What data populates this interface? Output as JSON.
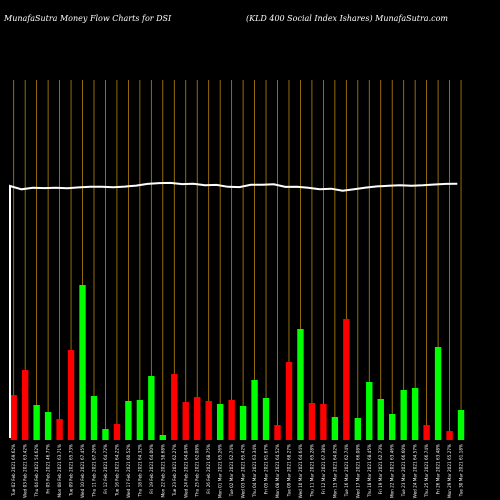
{
  "chart_data": {
    "type": "bar",
    "title_left": "MunafaSutra  Money Flow  Charts for DSI",
    "title_right": "(KLD 400   Social Index Ishares) MunafaSutra.com",
    "colors": {
      "background": "#000000",
      "gridline": "#b8860b",
      "up": "#00ff00",
      "down": "#ff0000",
      "line": "#ffffff"
    },
    "bars": {
      "values": [
        45,
        70,
        35,
        28,
        21,
        90,
        155,
        44,
        11,
        16,
        39,
        40,
        64,
        5,
        66,
        38,
        43,
        39,
        36,
        40,
        34,
        60,
        42,
        15,
        78,
        111,
        37,
        36,
        23,
        121,
        22,
        58,
        41,
        26,
        50,
        52,
        15,
        93,
        9,
        30
      ],
      "directions": [
        "down",
        "down",
        "up",
        "up",
        "down",
        "down",
        "up",
        "up",
        "up",
        "down",
        "up",
        "up",
        "up",
        "up",
        "down",
        "down",
        "down",
        "down",
        "up",
        "down",
        "up",
        "up",
        "up",
        "down",
        "down",
        "up",
        "down",
        "down",
        "up",
        "down",
        "up",
        "up",
        "up",
        "up",
        "up",
        "up",
        "down",
        "up",
        "down",
        "up"
      ]
    },
    "line": {
      "values": [
        100,
        93.5,
        96.5,
        95.9,
        96.7,
        95.5,
        97.1,
        98.7,
        98.5,
        97.6,
        98.8,
        100.8,
        104.2,
        105.9,
        106.1,
        103.8,
        104.3,
        101.4,
        102.1,
        98.3,
        97.9,
        102.4,
        102.6,
        103.5,
        98.1,
        98.7,
        96.4,
        93.6,
        94.7,
        90.7,
        93.6,
        96.9,
        99.2,
        100.5,
        101.3,
        100.6,
        101.4,
        103,
        104.2,
        104.4
      ],
      "start_value": 0
    },
    "x_ticks": [
      "Tue 02 Feb 2021 69.62%",
      "Wed 03 Feb 2021 63.42%",
      "Thu 04 Feb 2021 54.62%",
      "Fri 05 Feb 2021 46.77%",
      "Mon 08 Feb 2021 63.71%",
      "Tue 09 Feb 2021 65.73%",
      "Wed 10 Feb 2021 67.45%",
      "Thu 11 Feb 2021 67.26%",
      "Fri 12 Feb 2021 64.72%",
      "Tue 16 Feb 2021 64.22%",
      "Wed 17 Feb 2021 60.52%",
      "Thu 18 Feb 2021 64.32%",
      "Fri 19 Feb 2021 64.00%",
      "Mon 22 Feb 2021 58.68%",
      "Tue 23 Feb 2021 62.27%",
      "Wed 24 Feb 2021 64.04%",
      "Thu 25 Feb 2021 62.08%",
      "Fri 26 Feb 2021 68.75%",
      "Mon 01 Mar 2021 65.26%",
      "Tue 02 Mar 2021 62.74%",
      "Wed 03 Mar 2021 65.42%",
      "Thu 04 Mar 2021 63.34%",
      "Fri 05 Mar 2021 61.67%",
      "Mon 08 Mar 2021 64.52%",
      "Tue 09 Mar 2021 68.27%",
      "Wed 10 Mar 2021 64.64%",
      "Thu 11 Mar 2021 65.28%",
      "Fri 12 Mar 2021 67.38%",
      "Mon 15 Mar 2021 64.02%",
      "Tue 16 Mar 2021 62.74%",
      "Wed 17 Mar 2021 66.08%",
      "Thu 18 Mar 2021 68.45%",
      "Fri 19 Mar 2021 62.73%",
      "Mon 22 Mar 2021 63.46%",
      "Tue 23 Mar 2021 66.60%",
      "Wed 24 Mar 2021 64.57%",
      "Thu 25 Mar 2021 66.74%",
      "Fri 26 Mar 2021 63.48%",
      "Mon 29 Mar 2021 65.27%",
      "Tue 30 Mar 2021 61.18%"
    ],
    "grid": true,
    "legend": "none"
  }
}
